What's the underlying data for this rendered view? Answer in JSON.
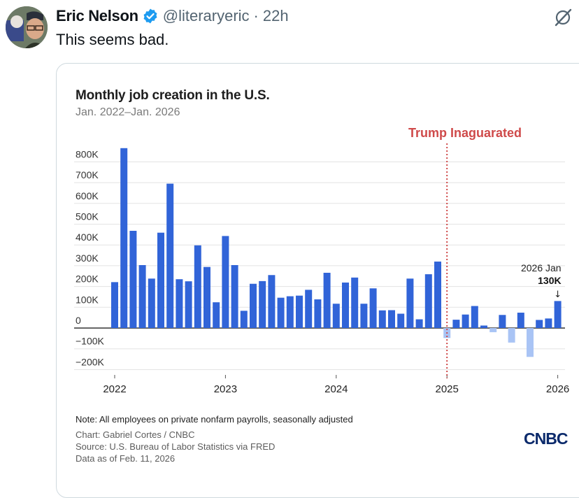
{
  "tweet": {
    "display_name": "Eric Nelson",
    "handle": "@literaryeric",
    "separator": "·",
    "time": "22h",
    "text": "This seems bad.",
    "verified_icon": "verified-badge-icon",
    "grok_icon": "grok-icon"
  },
  "colors": {
    "bar_positive": "#3164d8",
    "bar_negative": "#a9c4f5",
    "annotation_red": "#cf4a4a",
    "verified_blue": "#1d9bf0",
    "cnbc_navy": "#0b2a6b"
  },
  "chart_card": {
    "note": "Note: All employees on private nonfarm payrolls, seasonally adjusted",
    "credit_lines": [
      "Chart: Gabriel Cortes / CNBC",
      "Source: U.S. Bureau of Labor Statistics via FRED",
      "Data as of Feb. 11, 2026"
    ],
    "logo": "CNBC"
  },
  "chart_data": {
    "type": "bar",
    "title": "Monthly job creation in the U.S.",
    "subtitle": "Jan. 2022–Jan. 2026",
    "xlabel": "",
    "ylabel": "",
    "ylim": [
      -200,
      800
    ],
    "y_unit": "thousands",
    "grid": true,
    "y_ticks": [
      800,
      700,
      600,
      500,
      400,
      300,
      200,
      100,
      0,
      -100,
      -200
    ],
    "y_tick_labels": [
      "800K",
      "700K",
      "600K",
      "500K",
      "400K",
      "300K",
      "200K",
      "100K",
      "0",
      "−100K",
      "−200K"
    ],
    "x_tick_labels": [
      "2022",
      "2023",
      "2024",
      "2025",
      "2026"
    ],
    "x_tick_month_index": [
      0,
      12,
      24,
      36,
      48
    ],
    "start_month": "2022-01",
    "values": [
      221,
      866,
      468,
      303,
      238,
      459,
      695,
      235,
      225,
      398,
      294,
      124,
      443,
      303,
      83,
      213,
      226,
      255,
      146,
      153,
      156,
      184,
      138,
      266,
      117,
      219,
      243,
      117,
      191,
      85,
      86,
      69,
      238,
      42,
      259,
      320,
      -48,
      40,
      65,
      106,
      12,
      -20,
      63,
      -70,
      74,
      -139,
      39,
      46,
      130
    ],
    "highlight_from_index": 36,
    "annotations": [
      {
        "type": "vline",
        "at_index": 36,
        "label": "Trump Inaguarated",
        "color": "#cf4a4a",
        "style": "dotted"
      },
      {
        "type": "callout",
        "at_index": 48,
        "line1": "2026 Jan",
        "line2": "130K",
        "arrow": "↓"
      }
    ]
  }
}
